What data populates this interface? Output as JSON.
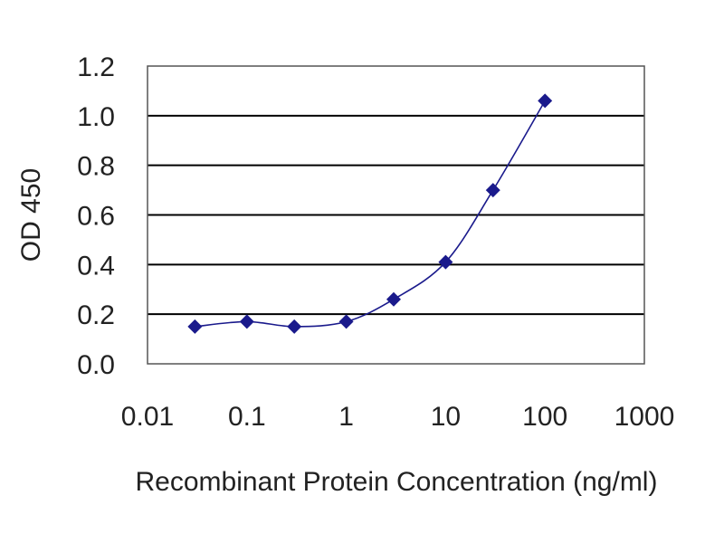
{
  "chart_data": {
    "type": "line",
    "title": "",
    "xlabel": "Recombinant Protein Concentration (ng/ml)",
    "ylabel": "OD 450",
    "x_scale": "log",
    "xlim": [
      0.01,
      1000
    ],
    "ylim": [
      0.0,
      1.2
    ],
    "x_ticks": [
      0.01,
      0.1,
      1,
      10,
      100,
      1000
    ],
    "x_tick_labels": [
      "0.01",
      "0.1",
      "1",
      "10",
      "100",
      "1000"
    ],
    "y_ticks": [
      0.0,
      0.2,
      0.4,
      0.6,
      0.8,
      1.0,
      1.2
    ],
    "y_tick_labels": [
      "0.0",
      "0.2",
      "0.4",
      "0.6",
      "0.8",
      "1.0",
      "1.2"
    ],
    "grid": "horizontal",
    "legend": "none",
    "series": [
      {
        "x": [
          0.03,
          0.1,
          0.3,
          1,
          3,
          10,
          30,
          100
        ],
        "y": [
          0.15,
          0.17,
          0.15,
          0.17,
          0.26,
          0.41,
          0.7,
          1.06
        ],
        "marker": "diamond",
        "color": "#1a1a8c"
      }
    ],
    "colors": {
      "series": "#1a1a8c",
      "grid": "#000000",
      "text": "#222222"
    }
  }
}
